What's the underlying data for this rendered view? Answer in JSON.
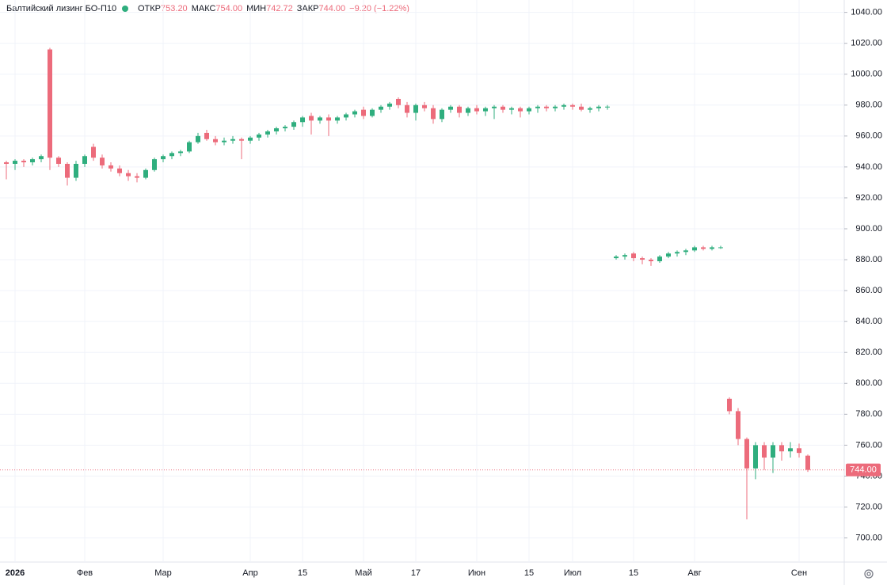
{
  "chart_data": {
    "type": "candlestick",
    "title": "Балтийский лизинг БО-П10",
    "legend_items": [
      {
        "label": "ОТКР",
        "value": "753.20"
      },
      {
        "label": "МАКС",
        "value": "754.00"
      },
      {
        "label": "МИН",
        "value": "742.72"
      },
      {
        "label": "ЗАКР",
        "value": "744.00"
      }
    ],
    "change": "−9.20 (−1.22%)",
    "up_color": "#2fae7e",
    "down_color": "#ec6b7b",
    "grid": true,
    "ylim": [
      684.4,
      1048
    ],
    "yticks": [
      {
        "value": 700,
        "label": "700.00"
      },
      {
        "value": 720,
        "label": "720.00"
      },
      {
        "value": 740,
        "label": "740.00"
      },
      {
        "value": 760,
        "label": "760.00"
      },
      {
        "value": 780,
        "label": "780.00"
      },
      {
        "value": 800,
        "label": "800.00"
      },
      {
        "value": 820,
        "label": "820.00"
      },
      {
        "value": 840,
        "label": "840.00"
      },
      {
        "value": 860,
        "label": "860.00"
      },
      {
        "value": 880,
        "label": "880.00"
      },
      {
        "value": 900,
        "label": "900.00"
      },
      {
        "value": 920,
        "label": "920.00"
      },
      {
        "value": 940,
        "label": "940.00"
      },
      {
        "value": 960,
        "label": "960.00"
      },
      {
        "value": 980,
        "label": "980.00"
      },
      {
        "value": 1000,
        "label": "1000.00"
      },
      {
        "value": 1020,
        "label": "1020.00"
      },
      {
        "value": 1040,
        "label": "1040.00"
      }
    ],
    "last_price": {
      "value": 744,
      "label": "744.00"
    },
    "categories": [
      null,
      "2026",
      null,
      null,
      null,
      null,
      null,
      null,
      null,
      "Фев",
      null,
      null,
      null,
      null,
      null,
      null,
      null,
      null,
      "Мар",
      null,
      null,
      null,
      null,
      null,
      null,
      null,
      null,
      null,
      "Апр",
      null,
      null,
      null,
      null,
      null,
      "15",
      null,
      null,
      null,
      null,
      null,
      null,
      "Май",
      null,
      null,
      null,
      null,
      null,
      "17",
      null,
      null,
      null,
      null,
      null,
      null,
      "Июн",
      null,
      null,
      null,
      null,
      null,
      "15",
      null,
      null,
      null,
      null,
      "Июл",
      null,
      null,
      null,
      null,
      null,
      null,
      "15",
      null,
      null,
      null,
      null,
      null,
      null,
      "Авг",
      null,
      null,
      null,
      null,
      null,
      null,
      null,
      null,
      null,
      null,
      null,
      "Сен",
      null
    ],
    "ohlc": [
      [
        943,
        944,
        932,
        942
      ],
      [
        942,
        945,
        938,
        944
      ],
      [
        944,
        945,
        940,
        943
      ],
      [
        943,
        946,
        941,
        945
      ],
      [
        945,
        948,
        943,
        947
      ],
      [
        1016,
        1017,
        938,
        946
      ],
      [
        946,
        947,
        940,
        942
      ],
      [
        942,
        943,
        928,
        933
      ],
      [
        933,
        944,
        931,
        942
      ],
      [
        942,
        948,
        940,
        947
      ],
      [
        953,
        955,
        944,
        946
      ],
      [
        946,
        948,
        939,
        941
      ],
      [
        941,
        943,
        937,
        939
      ],
      [
        939,
        941,
        934,
        936
      ],
      [
        936,
        938,
        931,
        934
      ],
      [
        934,
        936,
        930,
        933
      ],
      [
        933,
        939,
        932,
        938
      ],
      [
        938,
        946,
        937,
        945
      ],
      [
        945,
        948,
        943,
        947
      ],
      [
        947,
        950,
        945,
        949
      ],
      [
        949,
        951,
        947,
        950
      ],
      [
        950,
        957,
        949,
        956
      ],
      [
        956,
        962,
        955,
        960
      ],
      [
        962,
        964,
        957,
        958
      ],
      [
        958,
        960,
        954,
        956
      ],
      [
        956,
        959,
        954,
        957
      ],
      [
        957,
        960,
        955,
        958
      ],
      [
        958,
        959,
        945,
        957
      ],
      [
        957,
        960,
        955,
        959
      ],
      [
        959,
        962,
        957,
        961
      ],
      [
        961,
        964,
        959,
        963
      ],
      [
        963,
        966,
        961,
        965
      ],
      [
        965,
        967,
        963,
        966
      ],
      [
        966,
        970,
        964,
        969
      ],
      [
        969,
        973,
        966,
        972
      ],
      [
        973,
        975,
        961,
        970
      ],
      [
        970,
        973,
        968,
        972
      ],
      [
        972,
        974,
        960,
        970
      ],
      [
        970,
        973,
        968,
        972
      ],
      [
        972,
        975,
        970,
        974
      ],
      [
        974,
        977,
        972,
        976
      ],
      [
        977,
        979,
        971,
        973
      ],
      [
        973,
        978,
        972,
        977
      ],
      [
        977,
        980,
        975,
        979
      ],
      [
        979,
        982,
        977,
        981
      ],
      [
        984,
        985,
        978,
        980
      ],
      [
        980,
        982,
        972,
        975
      ],
      [
        975,
        981,
        970,
        980
      ],
      [
        980,
        982,
        976,
        978
      ],
      [
        978,
        980,
        968,
        971
      ],
      [
        971,
        978,
        969,
        977
      ],
      [
        977,
        980,
        975,
        979
      ],
      [
        979,
        980,
        972,
        975
      ],
      [
        975,
        979,
        973,
        978
      ],
      [
        978,
        980,
        974,
        976
      ],
      [
        976,
        979,
        973,
        978
      ],
      [
        978,
        980,
        971,
        979
      ],
      [
        979,
        980,
        975,
        977
      ],
      [
        977,
        979,
        974,
        978
      ],
      [
        978,
        979,
        972,
        976
      ],
      [
        976,
        979,
        974,
        978
      ],
      [
        978,
        980,
        975,
        979
      ],
      [
        979,
        980,
        976,
        978
      ],
      [
        978,
        980,
        976,
        979
      ],
      [
        979,
        981,
        977,
        980
      ],
      [
        980,
        981,
        977,
        979
      ],
      [
        979,
        981,
        976,
        977
      ],
      [
        977,
        979,
        975,
        978
      ],
      [
        978,
        980,
        976,
        979
      ],
      [
        979,
        980,
        977,
        979
      ],
      [
        881,
        883,
        880,
        882
      ],
      [
        882,
        884,
        880,
        883
      ],
      [
        884,
        885,
        879,
        881
      ],
      [
        881,
        882,
        877,
        880
      ],
      [
        880,
        881,
        876,
        879
      ],
      [
        879,
        883,
        878,
        882
      ],
      [
        882,
        885,
        881,
        884
      ],
      [
        884,
        886,
        882,
        885
      ],
      [
        885,
        887,
        883,
        886
      ],
      [
        886,
        889,
        885,
        888
      ],
      [
        888,
        889,
        886,
        887
      ],
      [
        887,
        889,
        886,
        888
      ],
      [
        888,
        889,
        887,
        888
      ],
      [
        790,
        791,
        780,
        782
      ],
      [
        782,
        784,
        760,
        764
      ],
      [
        764,
        765,
        712,
        745
      ],
      [
        745,
        762,
        738,
        760
      ],
      [
        760,
        762,
        744,
        752
      ],
      [
        752,
        762,
        742,
        760
      ],
      [
        760,
        762,
        750,
        756
      ],
      [
        756,
        762,
        752,
        758
      ],
      [
        758,
        761,
        752,
        755
      ],
      [
        753.2,
        754,
        742.72,
        744
      ]
    ]
  }
}
